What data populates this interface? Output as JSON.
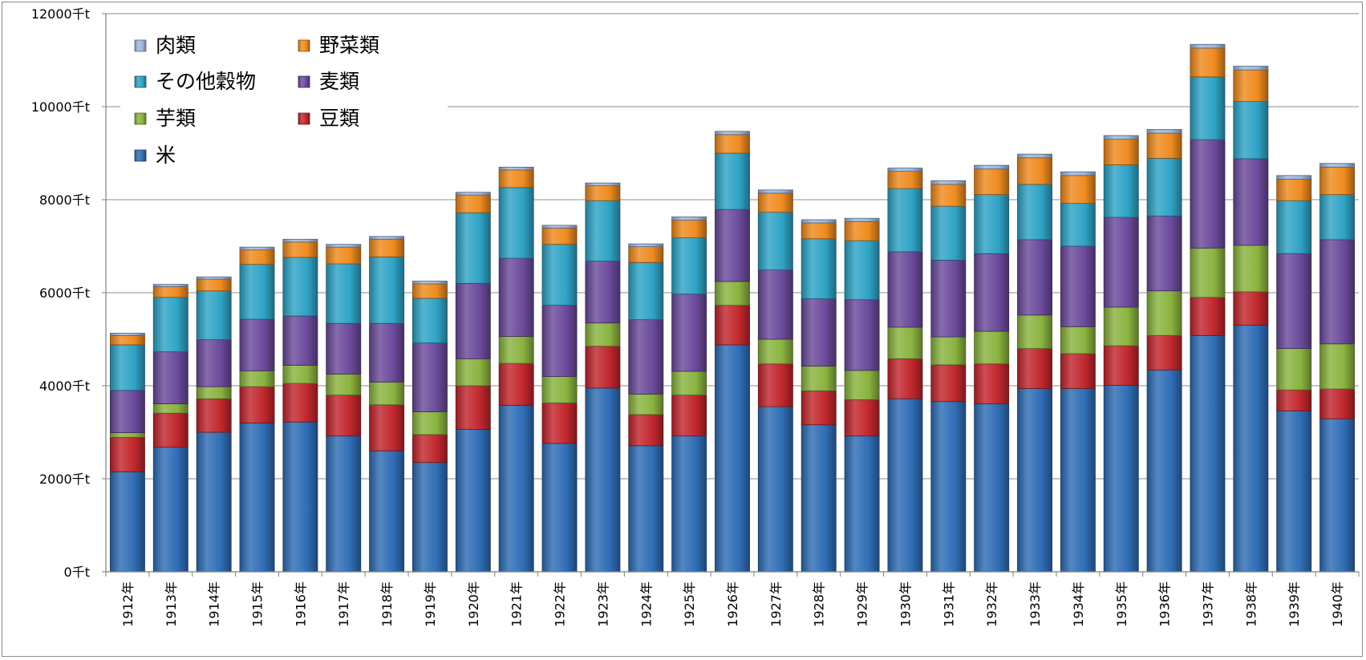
{
  "chart_data": {
    "type": "bar",
    "stacked": true,
    "categories": [
      "1912年",
      "1913年",
      "1914年",
      "1915年",
      "1916年",
      "1917年",
      "1918年",
      "1919年",
      "1920年",
      "1921年",
      "1922年",
      "1923年",
      "1924年",
      "1925年",
      "1926年",
      "1927年",
      "1928年",
      "1929年",
      "1930年",
      "1931年",
      "1932年",
      "1933年",
      "1934年",
      "1935年",
      "1936年",
      "1937年",
      "1938年",
      "1939年",
      "1940年"
    ],
    "ylim": [
      0,
      12000
    ],
    "yticks": [
      0,
      2000,
      4000,
      6000,
      8000,
      10000,
      12000
    ],
    "ytick_labels": [
      "0千t",
      "2000千t",
      "4000千t",
      "6000千t",
      "8000千t",
      "10000千t",
      "12000千t"
    ],
    "grid": true,
    "legend_position": "top-left",
    "series": [
      {
        "name": "米",
        "color": "#2f6db5",
        "values": [
          2150,
          2680,
          3000,
          3200,
          3220,
          2920,
          2600,
          2350,
          3060,
          3580,
          2760,
          3950,
          2710,
          2920,
          4880,
          3550,
          3160,
          2920,
          3720,
          3660,
          3610,
          3940,
          3940,
          4010,
          4340,
          5080,
          5300,
          3460,
          3290
        ]
      },
      {
        "name": "豆類",
        "color": "#c1272d",
        "values": [
          740,
          730,
          720,
          780,
          830,
          880,
          990,
          600,
          940,
          900,
          870,
          900,
          670,
          880,
          850,
          920,
          730,
          780,
          860,
          790,
          860,
          860,
          750,
          850,
          740,
          820,
          720,
          450,
          640
        ]
      },
      {
        "name": "芋類",
        "color": "#8ab33f",
        "values": [
          100,
          200,
          260,
          340,
          390,
          450,
          490,
          490,
          580,
          580,
          570,
          500,
          440,
          510,
          510,
          530,
          530,
          630,
          680,
          600,
          700,
          720,
          580,
          830,
          960,
          1060,
          1000,
          890,
          970
        ]
      },
      {
        "name": "麦類",
        "color": "#6b4a9b",
        "values": [
          910,
          1120,
          1010,
          1110,
          1060,
          1090,
          1260,
          1480,
          1620,
          1680,
          1530,
          1330,
          1600,
          1660,
          1550,
          1490,
          1450,
          1520,
          1620,
          1650,
          1670,
          1620,
          1730,
          1930,
          1610,
          2330,
          1860,
          2040,
          2240
        ]
      },
      {
        "name": "その他穀物",
        "color": "#2fa3c6",
        "values": [
          980,
          1170,
          1050,
          1180,
          1260,
          1280,
          1430,
          960,
          1520,
          1520,
          1310,
          1300,
          1230,
          1210,
          1210,
          1240,
          1290,
          1270,
          1360,
          1160,
          1270,
          1190,
          920,
          1130,
          1240,
          1350,
          1230,
          1140,
          970
        ]
      },
      {
        "name": "野菜類",
        "color": "#ef8b1f",
        "values": [
          200,
          230,
          250,
          310,
          330,
          360,
          380,
          310,
          380,
          380,
          350,
          320,
          340,
          380,
          400,
          410,
          340,
          410,
          370,
          470,
          550,
          570,
          600,
          550,
          540,
          620,
          680,
          460,
          590
        ]
      },
      {
        "name": "肉類",
        "color": "#9fb7dc",
        "values": [
          50,
          50,
          50,
          60,
          60,
          60,
          60,
          60,
          60,
          60,
          60,
          60,
          60,
          70,
          70,
          70,
          70,
          70,
          70,
          80,
          80,
          80,
          80,
          80,
          80,
          80,
          80,
          80,
          80
        ]
      }
    ],
    "legend_order": [
      "肉類",
      "野菜類",
      "その他穀物",
      "麦類",
      "芋類",
      "豆類",
      "米"
    ]
  }
}
